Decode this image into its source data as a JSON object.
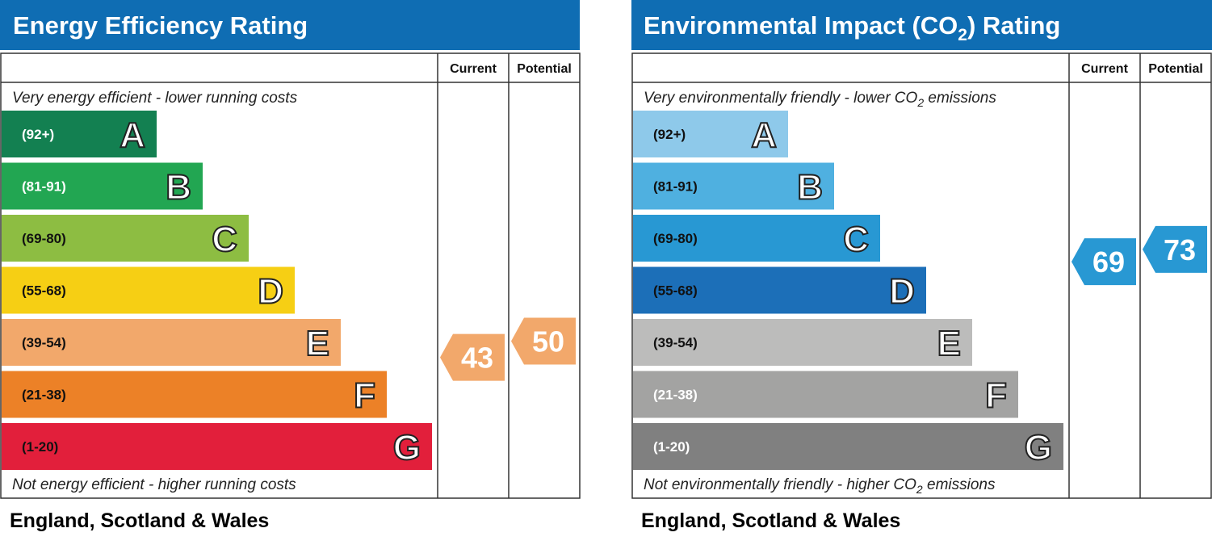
{
  "chart_data": [
    {
      "type": "bar",
      "title": "Energy Efficiency Rating",
      "columns": [
        "Current",
        "Potential"
      ],
      "top_note": "Very energy efficient - lower running costs",
      "bottom_note": "Not energy efficient - higher running costs",
      "footer": "England, Scotland & Wales",
      "bands": [
        {
          "letter": "A",
          "range": "(92+)",
          "color": "#138051",
          "text_color": "#ffffff"
        },
        {
          "letter": "B",
          "range": "(81-91)",
          "color": "#22a652",
          "text_color": "#ffffff"
        },
        {
          "letter": "C",
          "range": "(69-80)",
          "color": "#8dbd42",
          "text_color": "#111111"
        },
        {
          "letter": "D",
          "range": "(55-68)",
          "color": "#f6cf14",
          "text_color": "#111111"
        },
        {
          "letter": "E",
          "range": "(39-54)",
          "color": "#f2a86b",
          "text_color": "#111111"
        },
        {
          "letter": "F",
          "range": "(21-38)",
          "color": "#ec8127",
          "text_color": "#111111"
        },
        {
          "letter": "G",
          "range": "(1-20)",
          "color": "#e21f3b",
          "text_color": "#111111"
        }
      ],
      "current": {
        "value": 43,
        "color": "#f2a86b"
      },
      "potential": {
        "value": 50,
        "color": "#f2a86b"
      }
    },
    {
      "type": "bar",
      "title_main": "Environmental Impact (CO",
      "title_sub": "2",
      "title_end": ") Rating",
      "columns": [
        "Current",
        "Potential"
      ],
      "top_note_main": "Very environmentally friendly - lower CO",
      "top_note_sub": "2",
      "top_note_end": " emissions",
      "bottom_note_main": "Not environmentally friendly - higher CO",
      "bottom_note_sub": "2",
      "bottom_note_end": " emissions",
      "footer": "England, Scotland & Wales",
      "bands": [
        {
          "letter": "A",
          "range": "(92+)",
          "color": "#8ec9ea",
          "text_color": "#111111"
        },
        {
          "letter": "B",
          "range": "(81-91)",
          "color": "#4fb0e0",
          "text_color": "#111111"
        },
        {
          "letter": "C",
          "range": "(69-80)",
          "color": "#2898d3",
          "text_color": "#111111"
        },
        {
          "letter": "D",
          "range": "(55-68)",
          "color": "#1c6fb8",
          "text_color": "#111111"
        },
        {
          "letter": "E",
          "range": "(39-54)",
          "color": "#bcbcbb",
          "text_color": "#111111"
        },
        {
          "letter": "F",
          "range": "(21-38)",
          "color": "#a3a3a2",
          "text_color": "#ffffff"
        },
        {
          "letter": "G",
          "range": "(1-20)",
          "color": "#808080",
          "text_color": "#ffffff"
        }
      ],
      "current": {
        "value": 69,
        "color": "#2898d3"
      },
      "potential": {
        "value": 73,
        "color": "#2898d3"
      }
    }
  ]
}
